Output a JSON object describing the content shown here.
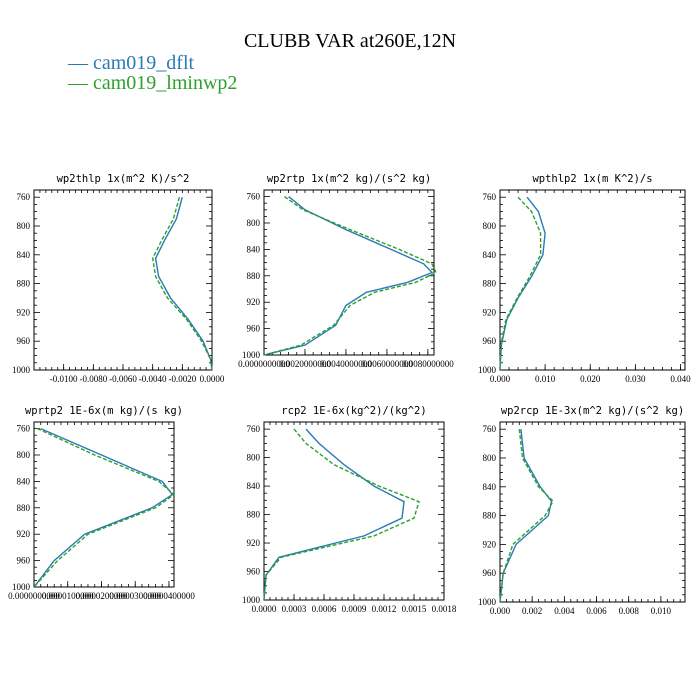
{
  "title": "CLUBB VAR at260E,12N",
  "legend": [
    {
      "label": "cam019_dflt",
      "color": "#2a7ab5",
      "style": "solid"
    },
    {
      "label": "cam019_lminwp2",
      "color": "#2ca02c",
      "style": "dashed"
    }
  ],
  "chart_data": [
    {
      "type": "line",
      "title": "wp2thlp  1x(m^2 K)/s^2",
      "ylim": [
        1000,
        750
      ],
      "xlim": [
        -0.012,
        0.0
      ],
      "yticks": [
        "760",
        "800",
        "840",
        "880",
        "920",
        "960",
        "1000"
      ],
      "xticks": [
        "-0.0100",
        "-0.0080",
        "-0.0060",
        "-0.0040",
        "-0.0020",
        "0.0000"
      ],
      "series": [
        {
          "name": "cam019_dflt",
          "x": [
            -0.002,
            -0.0024,
            -0.0032,
            -0.0038,
            -0.0036,
            -0.0028,
            -0.0016,
            -0.0006,
            -0.0001,
            0.0
          ],
          "y": [
            760,
            790,
            820,
            845,
            870,
            900,
            930,
            960,
            985,
            1000
          ]
        },
        {
          "name": "cam019_lminwp2",
          "x": [
            -0.0022,
            -0.0026,
            -0.0034,
            -0.004,
            -0.0038,
            -0.003,
            -0.0017,
            -0.0007,
            -0.0001,
            0.0
          ],
          "y": [
            760,
            790,
            820,
            845,
            870,
            900,
            930,
            960,
            985,
            1000
          ]
        }
      ]
    },
    {
      "type": "line",
      "title": "wp2rtp  1x(m^2 kg)/(s^2 kg)",
      "ylim": [
        1000,
        750
      ],
      "xlim": [
        0.0,
        0.0083
      ],
      "yticks": [
        "760",
        "800",
        "840",
        "880",
        "920",
        "960",
        "1000"
      ],
      "xticks": [
        "0.0000000000",
        "0.0020000000",
        "0.0040000000",
        "0.0060000000",
        "0.0080000000"
      ],
      "series": [
        {
          "name": "cam019_dflt",
          "x": [
            0.0012,
            0.002,
            0.004,
            0.0062,
            0.0078,
            0.0082,
            0.007,
            0.005,
            0.004,
            0.0035,
            0.002,
            0.0
          ],
          "y": [
            760,
            780,
            810,
            840,
            862,
            875,
            890,
            905,
            925,
            955,
            985,
            1000
          ]
        },
        {
          "name": "cam019_lminwp2",
          "x": [
            0.001,
            0.0019,
            0.0042,
            0.0066,
            0.0082,
            0.0084,
            0.0074,
            0.0054,
            0.0042,
            0.0034,
            0.0018,
            0.0
          ],
          "y": [
            760,
            780,
            810,
            840,
            862,
            875,
            890,
            905,
            925,
            955,
            985,
            1000
          ]
        }
      ]
    },
    {
      "type": "line",
      "title": "wpthlp2  1x(m K^2)/s",
      "ylim": [
        1000,
        750
      ],
      "xlim": [
        0.0,
        0.041
      ],
      "yticks": [
        "760",
        "800",
        "840",
        "880",
        "920",
        "960",
        "1000"
      ],
      "xticks": [
        "0.000",
        "0.010",
        "0.020",
        "0.030",
        "0.040"
      ],
      "series": [
        {
          "name": "cam019_dflt",
          "x": [
            0.006,
            0.0085,
            0.01,
            0.0095,
            0.007,
            0.004,
            0.0015,
            0.0003,
            0.0
          ],
          "y": [
            760,
            780,
            810,
            840,
            870,
            900,
            930,
            965,
            1000
          ]
        },
        {
          "name": "cam019_lminwp2",
          "x": [
            0.004,
            0.007,
            0.009,
            0.009,
            0.0066,
            0.0038,
            0.0013,
            0.0002,
            0.0
          ],
          "y": [
            760,
            780,
            810,
            840,
            870,
            900,
            930,
            965,
            1000
          ]
        }
      ]
    },
    {
      "type": "line",
      "title": "wprtp2  1E-6x(m kg)/(s kg)",
      "ylim": [
        1000,
        750
      ],
      "xlim": [
        0.0,
        4.15e-05
      ],
      "yticks": [
        "760",
        "800",
        "840",
        "880",
        "920",
        "960",
        "1000"
      ],
      "xticks": [
        "0.0000000000",
        "0.0000100000",
        "0.0000200000",
        "0.0000300000",
        "0.0000400000"
      ],
      "series": [
        {
          "name": "cam019_dflt",
          "x": [
            2e-06,
            2e-05,
            3.8e-05,
            4.1e-05,
            3.5e-05,
            1.5e-05,
            6e-06,
            0.0
          ],
          "y": [
            760,
            800,
            840,
            860,
            880,
            920,
            960,
            1000
          ]
        },
        {
          "name": "cam019_lminwp2",
          "x": [
            1e-06,
            1.8e-05,
            3.7e-05,
            4.15e-05,
            3.6e-05,
            1.6e-05,
            7e-06,
            0.0
          ],
          "y": [
            760,
            800,
            840,
            860,
            880,
            920,
            960,
            1000
          ]
        }
      ]
    },
    {
      "type": "line",
      "title": "rcp2  1E-6x(kg^2)/(kg^2)",
      "ylim": [
        1000,
        750
      ],
      "xlim": [
        0.0,
        0.0018
      ],
      "yticks": [
        "760",
        "800",
        "840",
        "880",
        "920",
        "960",
        "1000"
      ],
      "xticks": [
        "0.0000",
        "0.0003",
        "0.0006",
        "0.0009",
        "0.0012",
        "0.0015",
        "0.0018"
      ],
      "series": [
        {
          "name": "cam019_dflt",
          "x": [
            0.00042,
            0.00055,
            0.0008,
            0.0011,
            0.0014,
            0.00138,
            0.001,
            0.00015,
            2e-05,
            0.0
          ],
          "y": [
            760,
            780,
            810,
            840,
            862,
            885,
            910,
            940,
            965,
            1000
          ]
        },
        {
          "name": "cam019_lminwp2",
          "x": [
            0.0003,
            0.00042,
            0.0007,
            0.00115,
            0.00155,
            0.0015,
            0.0011,
            0.00017,
            2e-05,
            0.0
          ],
          "y": [
            760,
            780,
            810,
            840,
            862,
            885,
            910,
            940,
            965,
            1000
          ]
        }
      ]
    },
    {
      "type": "line",
      "title": "wp2rcp  1E-3x(m^2 kg)/(s^2 kg)",
      "ylim": [
        1000,
        750
      ],
      "xlim": [
        0.0,
        0.0115
      ],
      "yticks": [
        "760",
        "800",
        "840",
        "880",
        "920",
        "960",
        "1000"
      ],
      "xticks": [
        "0.000",
        "0.002",
        "0.004",
        "0.006",
        "0.008",
        "0.010"
      ],
      "series": [
        {
          "name": "cam019_dflt",
          "x": [
            0.0013,
            0.0015,
            0.0025,
            0.0032,
            0.003,
            0.001,
            0.0002,
            0.0
          ],
          "y": [
            760,
            800,
            840,
            860,
            880,
            920,
            960,
            1000
          ]
        },
        {
          "name": "cam019_lminwp2",
          "x": [
            0.0012,
            0.0014,
            0.0024,
            0.0033,
            0.0028,
            0.0008,
            0.0002,
            0.0
          ],
          "y": [
            760,
            800,
            840,
            860,
            880,
            920,
            960,
            1000
          ]
        }
      ]
    }
  ]
}
